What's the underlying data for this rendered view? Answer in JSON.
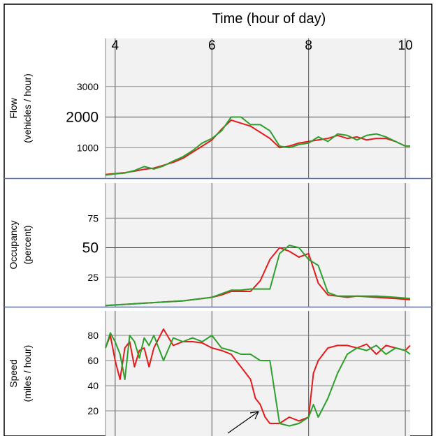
{
  "chart_data": {
    "type": "line",
    "title": "Time (hour of day)",
    "x_ticks": [
      "4",
      "6",
      "8",
      "10"
    ],
    "xlim": [
      3.8,
      10.1
    ],
    "colors": {
      "series_a": "#e41a1c",
      "series_b": "#2ca02c",
      "separator": "#4a6fd1"
    },
    "panels": [
      {
        "id": "flow",
        "ylabel_line1": "Flow",
        "ylabel_line2": "(vehicles / hour)",
        "ylim": [
          0,
          4000
        ],
        "y_ticks": [
          {
            "value": 3000,
            "label": "3000",
            "size": "small"
          },
          {
            "value": 2000,
            "label": "2000",
            "size": "big"
          },
          {
            "value": 1000,
            "label": "1000",
            "size": "small"
          }
        ],
        "series": [
          {
            "color": "#e41a1c",
            "x": [
              3.8,
              4.0,
              4.2,
              4.4,
              4.6,
              4.8,
              5.0,
              5.2,
              5.4,
              5.6,
              5.8,
              6.0,
              6.2,
              6.4,
              6.6,
              6.8,
              7.0,
              7.2,
              7.4,
              7.6,
              7.8,
              8.0,
              8.2,
              8.4,
              8.6,
              8.8,
              9.0,
              9.2,
              9.4,
              9.6,
              9.8,
              10.0,
              10.1
            ],
            "y": [
              120,
              150,
              180,
              230,
              290,
              330,
              420,
              520,
              650,
              850,
              1050,
              1250,
              1600,
              1900,
              1800,
              1700,
              1500,
              1300,
              1000,
              1050,
              1150,
              1200,
              1250,
              1300,
              1400,
              1300,
              1350,
              1250,
              1300,
              1300,
              1200,
              1050,
              1050
            ]
          },
          {
            "color": "#2ca02c",
            "x": [
              3.8,
              4.0,
              4.2,
              4.4,
              4.6,
              4.8,
              5.0,
              5.2,
              5.4,
              5.6,
              5.8,
              6.0,
              6.2,
              6.4,
              6.6,
              6.8,
              7.0,
              7.2,
              7.4,
              7.6,
              7.8,
              8.0,
              8.2,
              8.4,
              8.6,
              8.8,
              9.0,
              9.2,
              9.4,
              9.6,
              9.8,
              10.0,
              10.1
            ],
            "y": [
              100,
              140,
              170,
              250,
              380,
              300,
              400,
              560,
              700,
              900,
              1150,
              1300,
              1550,
              2000,
              2000,
              1750,
              1750,
              1550,
              1050,
              1000,
              1100,
              1150,
              1350,
              1200,
              1450,
              1400,
              1250,
              1400,
              1450,
              1350,
              1200,
              1050,
              1050
            ]
          }
        ]
      },
      {
        "id": "occupancy",
        "ylabel_line1": "Occupancy",
        "ylabel_line2": "(percent)",
        "ylim": [
          0,
          100
        ],
        "y_ticks": [
          {
            "value": 75,
            "label": "75",
            "size": "small"
          },
          {
            "value": 50,
            "label": "50",
            "size": "big"
          },
          {
            "value": 25,
            "label": "25",
            "size": "small"
          }
        ],
        "series": [
          {
            "color": "#e41a1c",
            "x": [
              3.8,
              4.2,
              4.6,
              5.0,
              5.4,
              5.8,
              6.0,
              6.2,
              6.4,
              6.6,
              6.8,
              7.0,
              7.2,
              7.4,
              7.6,
              7.8,
              8.0,
              8.2,
              8.4,
              8.6,
              8.8,
              9.0,
              9.4,
              9.8,
              10.1
            ],
            "y": [
              1,
              2,
              3,
              4,
              5,
              7,
              8,
              10,
              13,
              13,
              13,
              22,
              40,
              50,
              47,
              42,
              45,
              20,
              10,
              9,
              8,
              9,
              8,
              7,
              6
            ]
          },
          {
            "color": "#2ca02c",
            "x": [
              3.8,
              4.2,
              4.6,
              5.0,
              5.4,
              5.8,
              6.0,
              6.2,
              6.4,
              6.6,
              6.8,
              7.0,
              7.2,
              7.4,
              7.6,
              7.8,
              8.0,
              8.2,
              8.4,
              8.6,
              8.8,
              9.0,
              9.4,
              9.8,
              10.1
            ],
            "y": [
              1,
              2,
              3,
              4,
              5,
              7,
              8,
              11,
              14,
              14,
              15,
              15,
              15,
              45,
              52,
              50,
              40,
              35,
              12,
              9,
              9,
              9,
              9,
              8,
              7
            ]
          }
        ]
      },
      {
        "id": "speed",
        "ylabel_line1": "Speed",
        "ylabel_line2": "(miles / hour)",
        "ylim": [
          0,
          95
        ],
        "y_ticks": [
          {
            "value": 80,
            "label": "80",
            "size": "small"
          },
          {
            "value": 60,
            "label": "60",
            "size": "small"
          },
          {
            "value": 40,
            "label": "40",
            "size": "small"
          },
          {
            "value": 20,
            "label": "20",
            "size": "small"
          }
        ],
        "series": [
          {
            "color": "#e41a1c",
            "x": [
              3.8,
              3.9,
              4.0,
              4.1,
              4.2,
              4.3,
              4.4,
              4.5,
              4.6,
              4.7,
              4.8,
              5.0,
              5.2,
              5.4,
              5.6,
              5.8,
              6.0,
              6.2,
              6.4,
              6.6,
              6.8,
              6.9,
              7.0,
              7.1,
              7.2,
              7.4,
              7.6,
              7.8,
              8.0,
              8.1,
              8.2,
              8.4,
              8.6,
              8.8,
              9.0,
              9.2,
              9.4,
              9.6,
              9.8,
              10.0,
              10.1
            ],
            "y": [
              70,
              80,
              60,
              45,
              70,
              75,
              55,
              68,
              70,
              55,
              70,
              85,
              72,
              75,
              75,
              74,
              70,
              68,
              65,
              55,
              45,
              30,
              25,
              15,
              10,
              10,
              15,
              12,
              15,
              50,
              60,
              70,
              72,
              72,
              70,
              73,
              65,
              72,
              70,
              68,
              72
            ]
          },
          {
            "color": "#2ca02c",
            "x": [
              3.8,
              3.9,
              4.0,
              4.1,
              4.2,
              4.3,
              4.4,
              4.5,
              4.6,
              4.7,
              4.8,
              5.0,
              5.2,
              5.4,
              5.6,
              5.8,
              6.0,
              6.2,
              6.4,
              6.6,
              6.8,
              7.0,
              7.2,
              7.4,
              7.6,
              7.8,
              8.0,
              8.1,
              8.2,
              8.4,
              8.6,
              8.8,
              9.0,
              9.2,
              9.4,
              9.6,
              9.8,
              10.0,
              10.1
            ],
            "y": [
              70,
              82,
              75,
              65,
              45,
              80,
              75,
              62,
              78,
              72,
              80,
              60,
              78,
              75,
              78,
              75,
              80,
              70,
              68,
              65,
              65,
              60,
              60,
              10,
              8,
              10,
              15,
              25,
              15,
              30,
              50,
              65,
              70,
              68,
              72,
              65,
              70,
              68,
              65
            ]
          }
        ]
      }
    ]
  }
}
